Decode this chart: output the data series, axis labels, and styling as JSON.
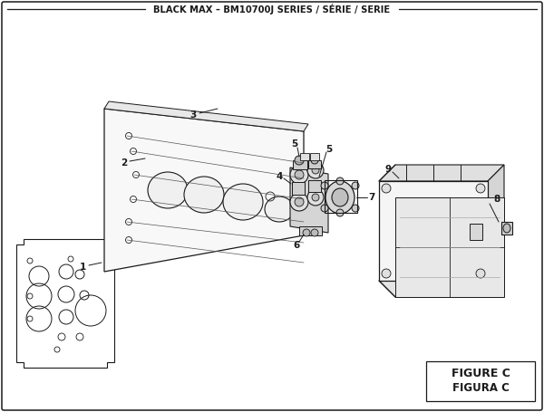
{
  "title": "BLACK MAX – BM10700J SERIES / SÉRIE / SERIE",
  "figure_label": "FIGURE C",
  "figure_label2": "FIGURA C",
  "bg_color": "#ffffff",
  "line_color": "#1a1a1a",
  "gray_fill": "#f2f2f2",
  "mid_gray": "#e0e0e0",
  "dark_gray": "#c8c8c8"
}
